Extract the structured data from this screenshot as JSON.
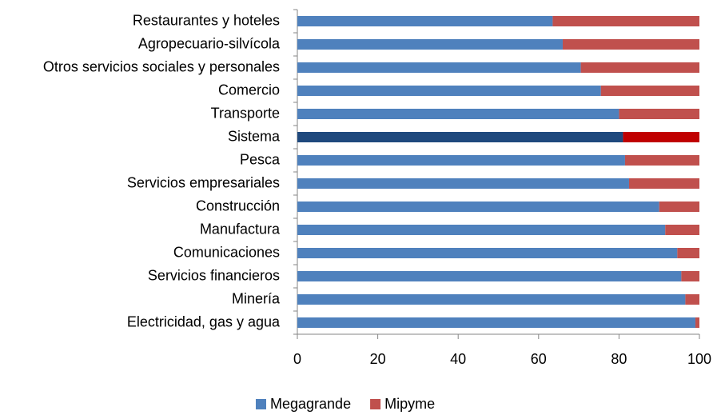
{
  "chart_data": {
    "type": "stacked_bar_horizontal",
    "categories": [
      "Restaurantes y hoteles",
      "Agropecuario-silvícola",
      "Otros servicios sociales y personales",
      "Comercio",
      "Transporte",
      "Sistema",
      "Pesca",
      "Servicios empresariales",
      "Construcción",
      "Manufactura",
      "Comunicaciones",
      "Servicios financieros",
      "Minería",
      "Electricidad, gas y agua"
    ],
    "series": [
      {
        "name": "Megagrande",
        "color": "#4f81bd",
        "colors": [
          "#4f81bd",
          "#4f81bd",
          "#4f81bd",
          "#4f81bd",
          "#4f81bd",
          "#1f497d",
          "#4f81bd",
          "#4f81bd",
          "#4f81bd",
          "#4f81bd",
          "#4f81bd",
          "#4f81bd",
          "#4f81bd",
          "#4f81bd"
        ],
        "values": [
          63.5,
          66,
          70.5,
          75.5,
          80,
          81,
          81.5,
          82.5,
          90,
          91.5,
          94.5,
          95.5,
          96.5,
          99
        ]
      },
      {
        "name": "Mipyme",
        "color": "#c0504d",
        "colors": [
          "#c0504d",
          "#c0504d",
          "#c0504d",
          "#c0504d",
          "#c0504d",
          "#c00000",
          "#c0504d",
          "#c0504d",
          "#c0504d",
          "#c0504d",
          "#c0504d",
          "#c0504d",
          "#c0504d",
          "#c0504d"
        ],
        "values": [
          36.5,
          34,
          29.5,
          24.5,
          20,
          19,
          18.5,
          17.5,
          10,
          8.5,
          5.5,
          4.5,
          3.5,
          1
        ]
      }
    ],
    "xlim": [
      0,
      100
    ],
    "xticks": [
      0,
      20,
      40,
      60,
      80,
      100
    ],
    "legend": "bottom"
  }
}
